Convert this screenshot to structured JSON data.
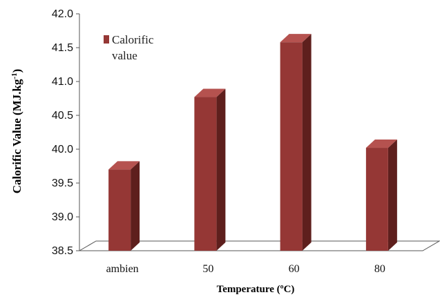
{
  "chart_data": {
    "type": "bar",
    "style": "3d",
    "categories": [
      "ambien",
      "50",
      "60",
      "80"
    ],
    "series": [
      {
        "name": "Calorific value",
        "values": [
          39.7,
          40.77,
          41.58,
          40.02
        ]
      }
    ],
    "xlabel": "Temperature (ºC)",
    "ylabel": "Calorific Value (MJ.kg",
    "ylabel_sup": "-1",
    "ylabel_close": ")",
    "ylim": [
      38.5,
      42.0
    ],
    "yticks": [
      "38.5",
      "39.0",
      "39.5",
      "40.0",
      "40.5",
      "41.0",
      "41.5",
      "42.0"
    ],
    "grid": false,
    "legend": {
      "position": "top-left",
      "lines": [
        "Calorific",
        "value"
      ]
    },
    "colors": {
      "bar_front": "#953735",
      "bar_side": "#5e1f1d",
      "bar_top": "#b5524f",
      "floor": "#ffffff"
    }
  }
}
